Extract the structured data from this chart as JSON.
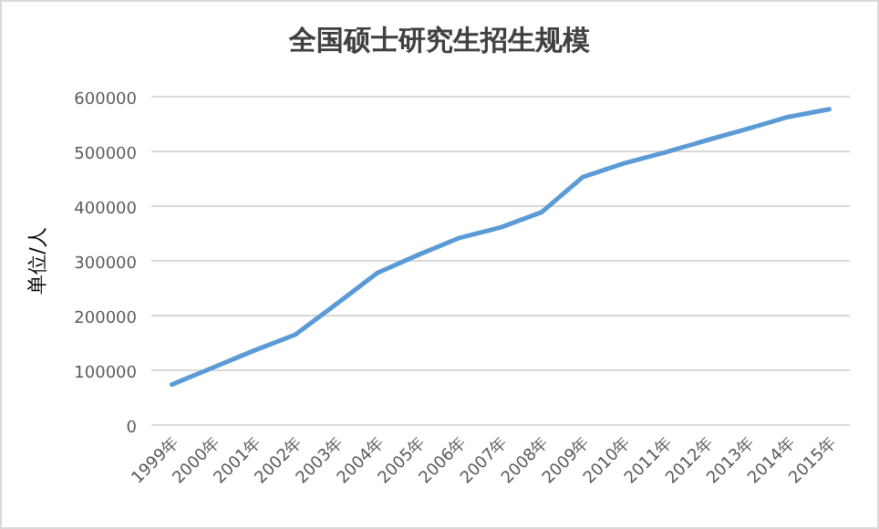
{
  "chart_data": {
    "type": "line",
    "title": "全国硕士研究生招生规模",
    "ylabel": "单位/人",
    "categories": [
      "1999年",
      "2000年",
      "2001年",
      "2002年",
      "2003年",
      "2004年",
      "2005年",
      "2006年",
      "2007年",
      "2008年",
      "2009年",
      "2010年",
      "2011年",
      "2012年",
      "2013年",
      "2014年",
      "2015年"
    ],
    "series": [
      {
        "color": "#5b9bd5",
        "values": [
          74000,
          105000,
          136000,
          165000,
          221000,
          278000,
          311000,
          342000,
          361000,
          389000,
          453000,
          478000,
          498000,
          520000,
          541000,
          563000,
          577000
        ]
      }
    ],
    "ylim": [
      0,
      600000
    ],
    "yticks": [
      0,
      100000,
      200000,
      300000,
      400000,
      500000,
      600000
    ],
    "grid": "y",
    "marker": "none",
    "line_style": "solid"
  }
}
